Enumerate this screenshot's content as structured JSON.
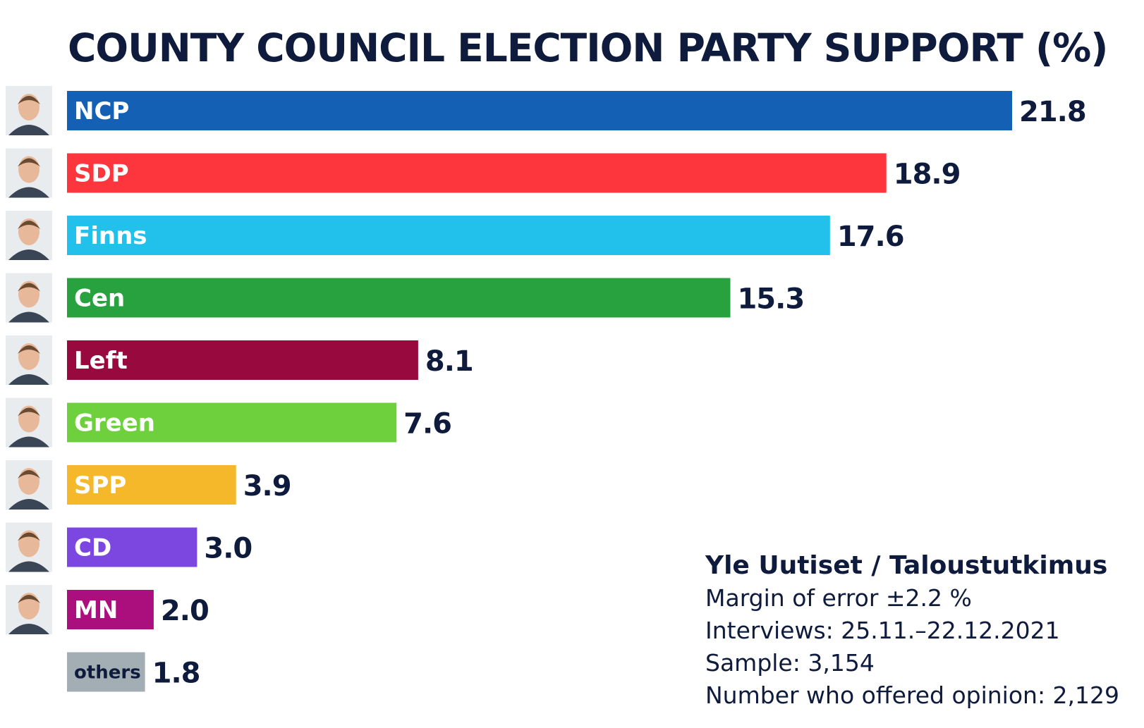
{
  "colors": {
    "text": "#0f1b3d",
    "background": "#ffffff"
  },
  "chart_data": {
    "type": "bar",
    "orientation": "horizontal",
    "title": "COUNTY COUNCIL ELECTION PARTY SUPPORT (%)",
    "xlim": [
      0,
      21.8
    ],
    "grid": false,
    "legend": "none",
    "categories": [
      "NCP",
      "SDP",
      "Finns",
      "Cen",
      "Left",
      "Green",
      "SPP",
      "CD",
      "MN",
      "others"
    ],
    "values": [
      21.8,
      18.9,
      17.6,
      15.3,
      8.1,
      7.6,
      3.9,
      3.0,
      2.0,
      1.8
    ],
    "value_labels": [
      "21.8",
      "18.9",
      "17.6",
      "15.3",
      "8.1",
      "7.6",
      "3.9",
      "3.0",
      "2.0",
      "1.8"
    ],
    "bar_colors": [
      "#1360b5",
      "#fd363e",
      "#21c1ec",
      "#28a13f",
      "#980a3d",
      "#6dd03c",
      "#f5b82b",
      "#7b47e0",
      "#ab0f7d",
      "#a3adb4"
    ],
    "label_colors": [
      "#ffffff",
      "#ffffff",
      "#ffffff",
      "#ffffff",
      "#ffffff",
      "#ffffff",
      "#ffffff",
      "#ffffff",
      "#ffffff",
      "#0f1b3d"
    ],
    "portrait_icons": [
      "portrait-icon",
      "portrait-icon",
      "portrait-icon",
      "portrait-icon",
      "portrait-icon",
      "portrait-icon",
      "portrait-icon",
      "portrait-icon",
      "portrait-icon",
      ""
    ]
  },
  "source": {
    "title": "Yle Uutiset / Taloustutkimus",
    "lines": [
      "Margin of error ±2.2 %",
      "Interviews: 25.11.–22.12.2021",
      "Sample: 3,154",
      "Number who offered opinion: 2,129"
    ]
  }
}
